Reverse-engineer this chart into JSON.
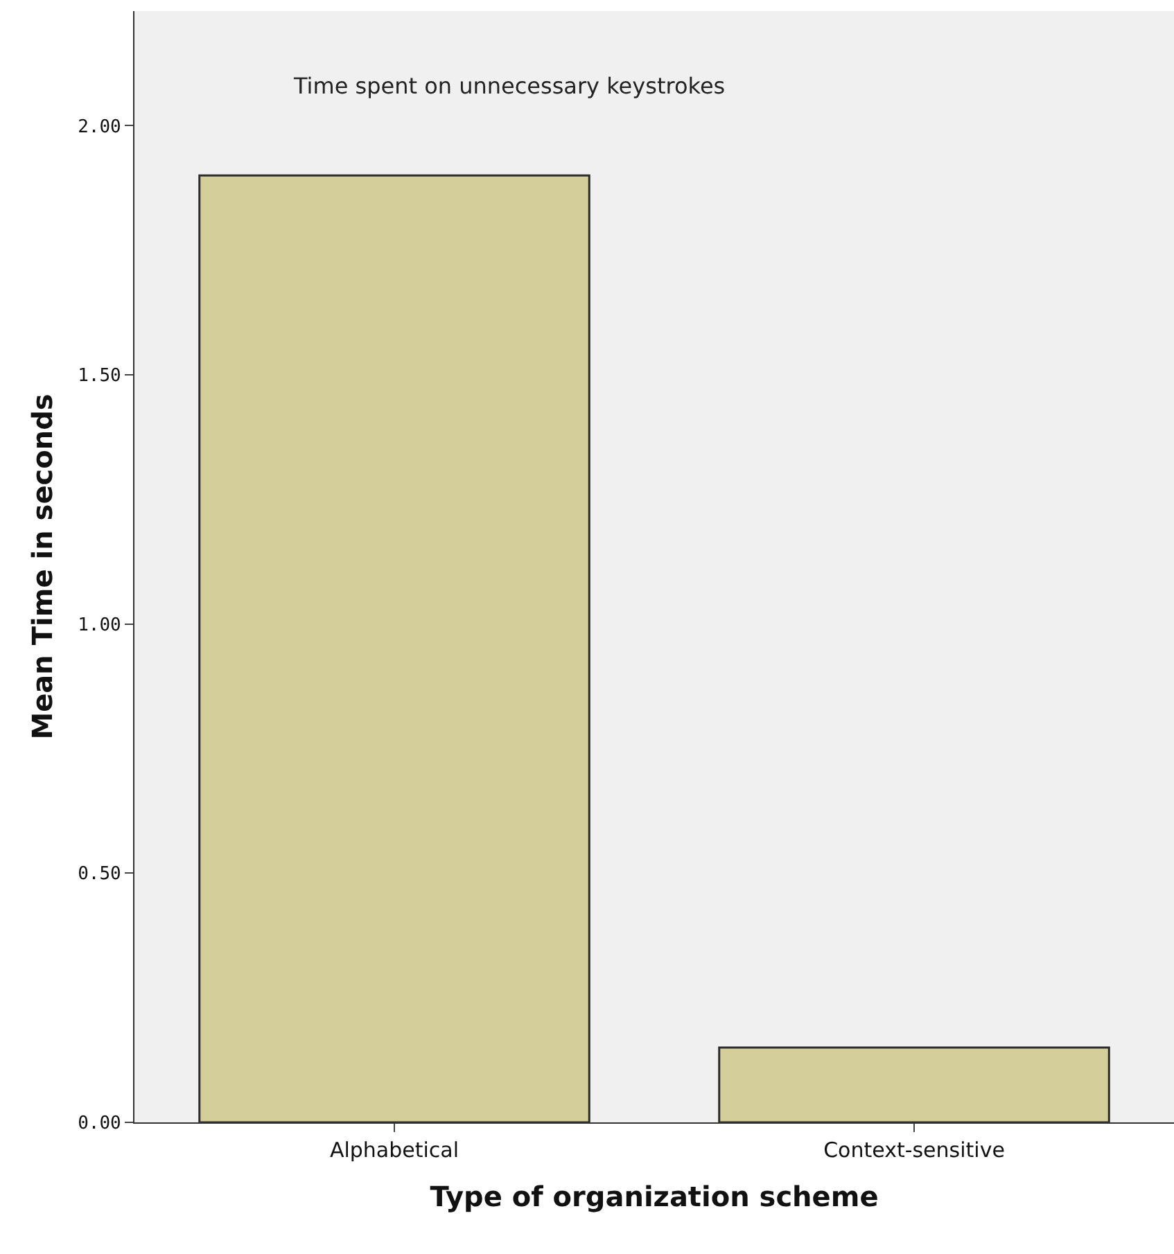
{
  "chart_data": {
    "type": "bar",
    "title": "Time spent on unnecessary keystrokes",
    "xlabel": "Type of organization scheme",
    "ylabel": "Mean Time in seconds",
    "categories": [
      "Alphabetical",
      "Context-sensitive"
    ],
    "values": [
      1.9,
      0.15
    ],
    "color": "#d3ce9a",
    "ylim": [
      0,
      2.23
    ],
    "yticks": [
      {
        "value": 0,
        "label": "0.00"
      },
      {
        "value": 0.5,
        "label": "0.50"
      },
      {
        "value": 1,
        "label": "1.00"
      },
      {
        "value": 1.5,
        "label": "1.50"
      },
      {
        "value": 2,
        "label": "2.00"
      }
    ],
    "grid": false
  }
}
